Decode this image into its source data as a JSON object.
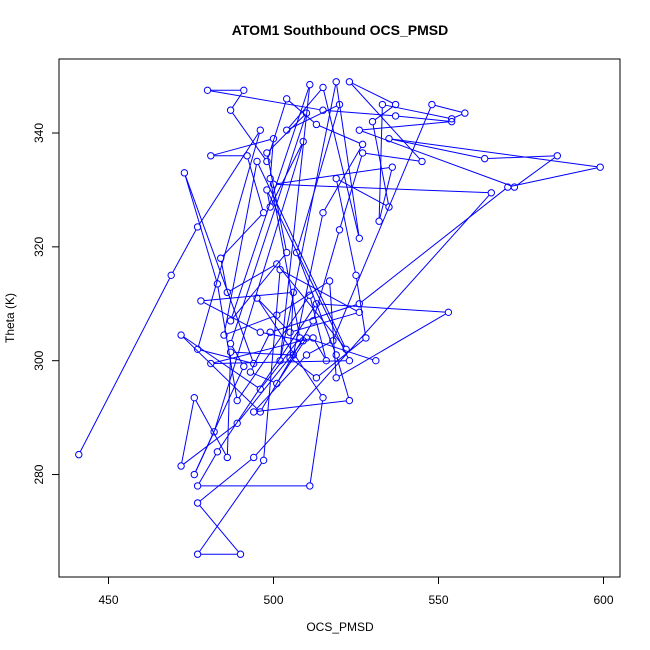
{
  "chart_data": {
    "type": "line",
    "title": "ATOM1 Southbound OCS_PMSD",
    "xlabel": "OCS_PMSD",
    "ylabel": "Theta (K)",
    "xlim": [
      435,
      605
    ],
    "ylim": [
      262,
      353
    ],
    "x_ticks": [
      450,
      500,
      550,
      600
    ],
    "y_ticks": [
      280,
      300,
      320,
      340
    ],
    "grid": false,
    "legend": "none",
    "series_color": "#0000ff",
    "series": [
      {
        "points": [
          [
            441,
            283.5
          ],
          [
            469,
            315
          ],
          [
            477,
            323.5
          ],
          [
            496,
            340.5
          ],
          [
            477,
            302
          ],
          [
            494,
            299.5
          ],
          [
            473,
            333
          ],
          [
            483,
            313.5
          ],
          [
            489,
            293
          ],
          [
            511,
            311.5
          ],
          [
            516,
            300
          ],
          [
            512,
            304
          ],
          [
            481,
            299.5
          ],
          [
            523,
            300
          ],
          [
            498,
            330
          ],
          [
            499,
            327
          ],
          [
            509,
            338.5
          ],
          [
            482,
            287.5
          ],
          [
            476,
            280
          ],
          [
            491,
            299
          ],
          [
            487,
            303
          ],
          [
            510,
            343.5
          ],
          [
            498,
            336.5
          ],
          [
            504,
            319
          ],
          [
            487,
            307
          ],
          [
            511,
            348.5
          ],
          [
            502,
            300
          ],
          [
            519,
            349
          ],
          [
            526,
            321.5
          ],
          [
            515,
            348
          ],
          [
            504,
            340.5
          ],
          [
            520,
            345
          ],
          [
            507,
            319
          ],
          [
            519,
            301
          ],
          [
            523,
            293
          ],
          [
            494,
            291
          ],
          [
            510,
            301
          ],
          [
            518,
            303.5
          ],
          [
            548,
            345
          ],
          [
            558,
            343.5
          ],
          [
            554,
            342.5
          ],
          [
            533,
            345
          ],
          [
            532,
            324.5
          ],
          [
            536,
            334
          ],
          [
            500,
            331
          ],
          [
            566,
            329.5
          ],
          [
            494,
            283
          ],
          [
            477,
            275
          ],
          [
            490,
            266
          ],
          [
            477,
            266
          ],
          [
            497,
            282.5
          ],
          [
            502,
            316
          ],
          [
            526,
            308.5
          ],
          [
            505,
            305
          ],
          [
            495,
            311
          ],
          [
            515,
            293.5
          ],
          [
            511,
            278
          ],
          [
            477,
            278
          ],
          [
            483,
            284
          ],
          [
            513,
            310
          ],
          [
            553,
            308.5
          ],
          [
            519,
            297
          ],
          [
            517,
            314
          ],
          [
            501,
            308
          ],
          [
            485,
            304.5
          ],
          [
            495,
            335
          ],
          [
            522,
            302
          ],
          [
            501,
            317
          ],
          [
            486,
            312
          ],
          [
            484,
            318
          ],
          [
            497,
            326
          ],
          [
            492,
            336
          ],
          [
            481,
            336
          ],
          [
            500,
            339
          ],
          [
            499,
            332
          ],
          [
            508,
            304
          ],
          [
            496,
            295
          ],
          [
            472,
            304.5
          ],
          [
            496,
            291
          ],
          [
            512,
            307
          ],
          [
            520,
            323
          ],
          [
            527,
            336.5
          ],
          [
            545,
            335
          ],
          [
            523,
            349
          ],
          [
            537,
            345
          ],
          [
            530,
            342
          ],
          [
            535,
            327
          ],
          [
            519,
            332
          ],
          [
            525,
            315
          ],
          [
            528,
            304
          ],
          [
            513,
            297
          ],
          [
            505,
            300.5
          ],
          [
            506,
            312
          ],
          [
            478,
            310.5
          ],
          [
            496,
            305
          ],
          [
            509,
            303.5
          ],
          [
            489,
            289
          ],
          [
            472,
            281.5
          ],
          [
            476,
            293.5
          ],
          [
            486,
            283
          ],
          [
            487,
            301.5
          ],
          [
            506,
            301
          ],
          [
            515,
            326
          ],
          [
            527,
            338
          ],
          [
            513,
            341.5
          ],
          [
            504,
            346
          ],
          [
            498,
            335
          ],
          [
            487,
            344
          ],
          [
            491,
            347.5
          ],
          [
            480,
            347.5
          ],
          [
            515,
            344
          ],
          [
            537,
            343
          ],
          [
            554,
            342
          ],
          [
            526,
            340.5
          ],
          [
            573,
            330.5
          ],
          [
            586,
            336
          ],
          [
            564,
            335.5
          ],
          [
            535,
            339
          ],
          [
            599,
            334
          ],
          [
            571,
            330.5
          ],
          [
            526,
            310
          ],
          [
            499,
            305
          ],
          [
            493,
            298
          ],
          [
            501,
            296
          ],
          [
            510,
            304
          ],
          [
            531,
            300
          ]
        ]
      }
    ]
  }
}
